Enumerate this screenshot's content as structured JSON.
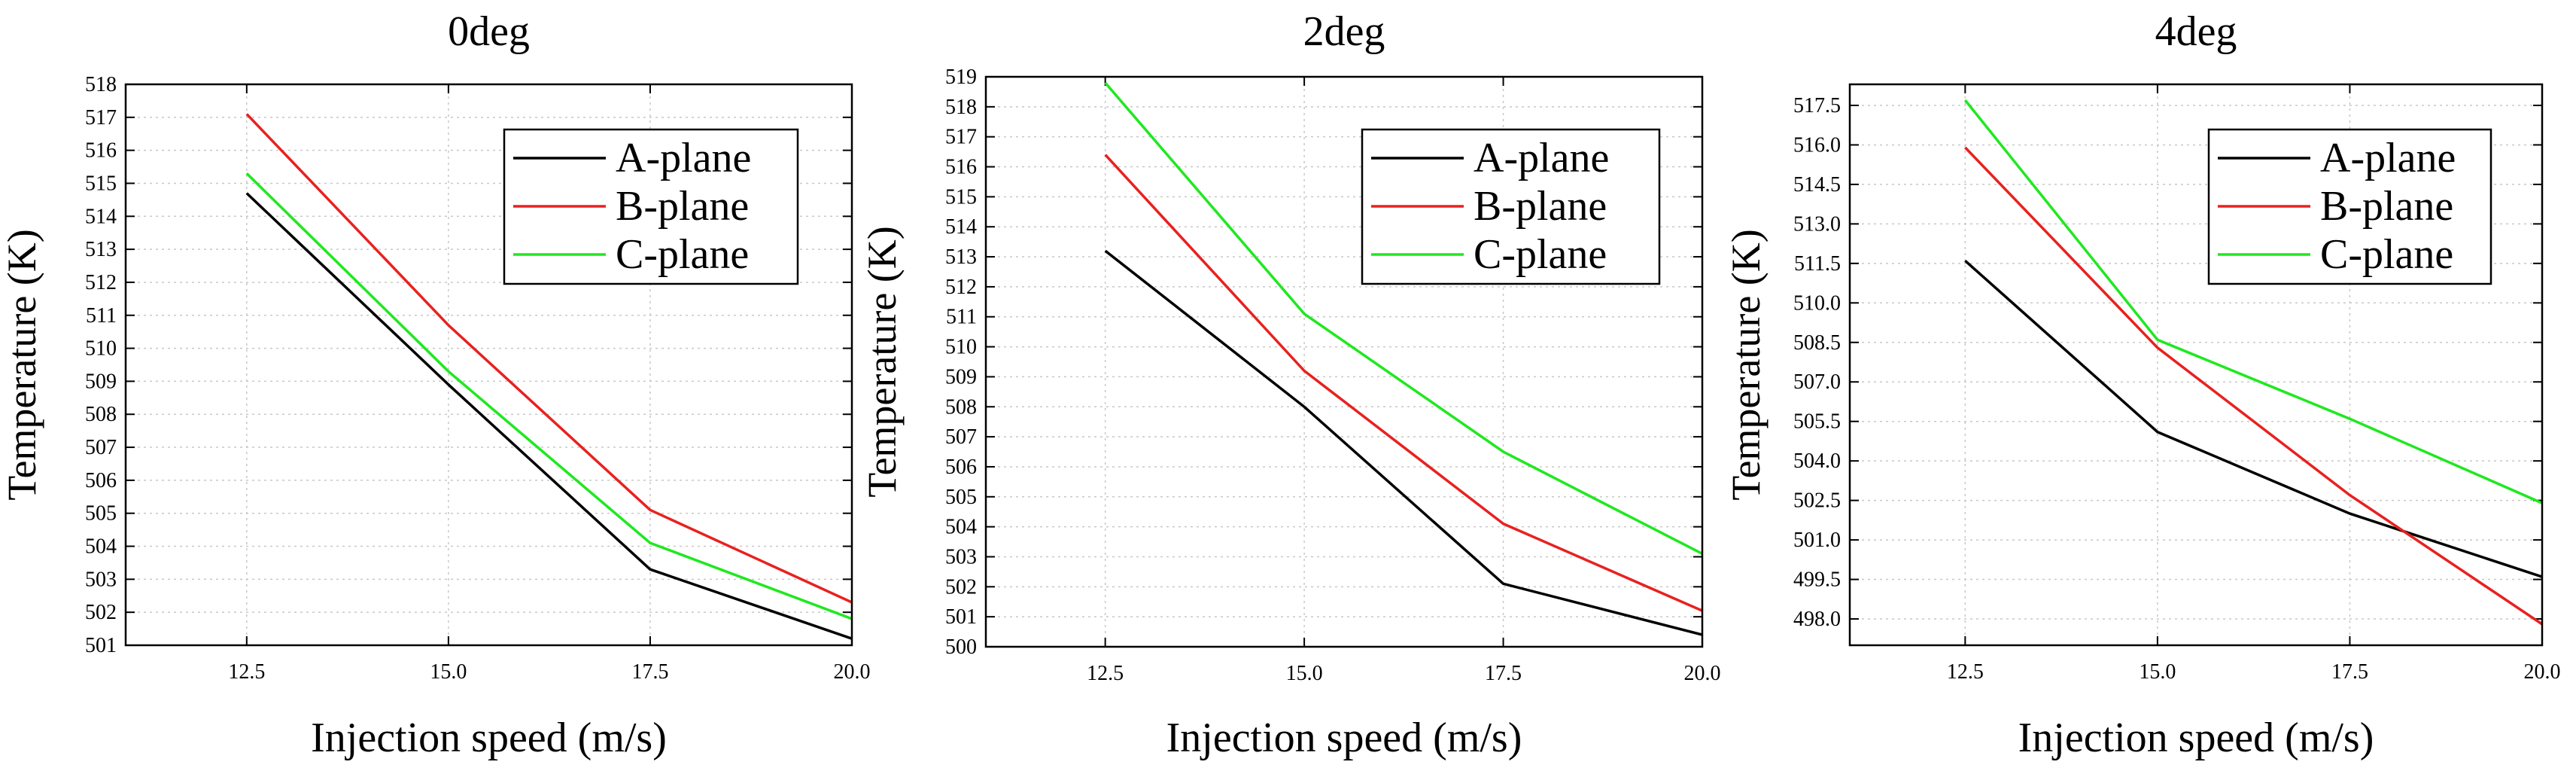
{
  "chart_data": [
    {
      "type": "line",
      "title": "0deg",
      "xlabel": "Injection speed (m/s)",
      "ylabel": "Temperature (K)",
      "x": [
        12.5,
        15.0,
        17.5,
        20.0
      ],
      "x_ticks": [
        "12.5",
        "15.0",
        "17.5",
        "20.0"
      ],
      "xlim": [
        11.0,
        20.0
      ],
      "ylim": [
        501,
        518
      ],
      "y_ticks": [
        "501",
        "502",
        "503",
        "504",
        "505",
        "506",
        "507",
        "508",
        "509",
        "510",
        "511",
        "512",
        "513",
        "514",
        "515",
        "516",
        "517",
        "518"
      ],
      "grid": true,
      "legend": "top-right",
      "series": [
        {
          "name": "A-plane",
          "color": "#000000",
          "values": [
            514.7,
            508.9,
            503.3,
            501.2
          ]
        },
        {
          "name": "B-plane",
          "color": "#e8211f",
          "values": [
            517.1,
            510.7,
            505.1,
            502.3
          ]
        },
        {
          "name": "C-plane",
          "color": "#1fe81f",
          "values": [
            515.3,
            509.3,
            504.1,
            501.8
          ]
        }
      ]
    },
    {
      "type": "line",
      "title": "2deg",
      "xlabel": "Injection speed (m/s)",
      "ylabel": "Temperature (K)",
      "x": [
        12.5,
        15.0,
        17.5,
        20.0
      ],
      "x_ticks": [
        "12.5",
        "15.0",
        "17.5",
        "20.0"
      ],
      "xlim": [
        11.0,
        20.0
      ],
      "ylim": [
        500,
        519
      ],
      "y_ticks": [
        "500",
        "501",
        "502",
        "503",
        "504",
        "505",
        "506",
        "507",
        "508",
        "509",
        "510",
        "511",
        "512",
        "513",
        "514",
        "515",
        "516",
        "517",
        "518",
        "519"
      ],
      "grid": true,
      "legend": "top-right",
      "series": [
        {
          "name": "A-plane",
          "color": "#000000",
          "values": [
            513.2,
            508.0,
            502.1,
            500.4
          ]
        },
        {
          "name": "B-plane",
          "color": "#e8211f",
          "values": [
            516.4,
            509.2,
            504.1,
            501.2
          ]
        },
        {
          "name": "C-plane",
          "color": "#1fe81f",
          "values": [
            518.8,
            511.1,
            506.5,
            503.1
          ]
        }
      ]
    },
    {
      "type": "line",
      "title": "4deg",
      "xlabel": "Injection speed (m/s)",
      "ylabel": "Temperature (K)",
      "x": [
        12.5,
        15.0,
        17.5,
        20.0
      ],
      "x_ticks": [
        "12.5",
        "15.0",
        "17.5",
        "20.0"
      ],
      "xlim": [
        11.0,
        20.0
      ],
      "ylim": [
        497.0,
        518.3
      ],
      "y_ticks": [
        "498.0",
        "499.5",
        "501.0",
        "502.5",
        "504.0",
        "505.5",
        "507.0",
        "508.5",
        "510.0",
        "511.5",
        "513.0",
        "514.5",
        "516.0",
        "517.5"
      ],
      "grid": true,
      "legend": "top-right",
      "series": [
        {
          "name": "A-plane",
          "color": "#000000",
          "values": [
            511.6,
            505.1,
            502.0,
            499.6
          ]
        },
        {
          "name": "B-plane",
          "color": "#e8211f",
          "values": [
            515.9,
            508.3,
            502.7,
            497.8
          ]
        },
        {
          "name": "C-plane",
          "color": "#1fe81f",
          "values": [
            517.7,
            508.6,
            505.6,
            502.4
          ]
        }
      ]
    }
  ]
}
